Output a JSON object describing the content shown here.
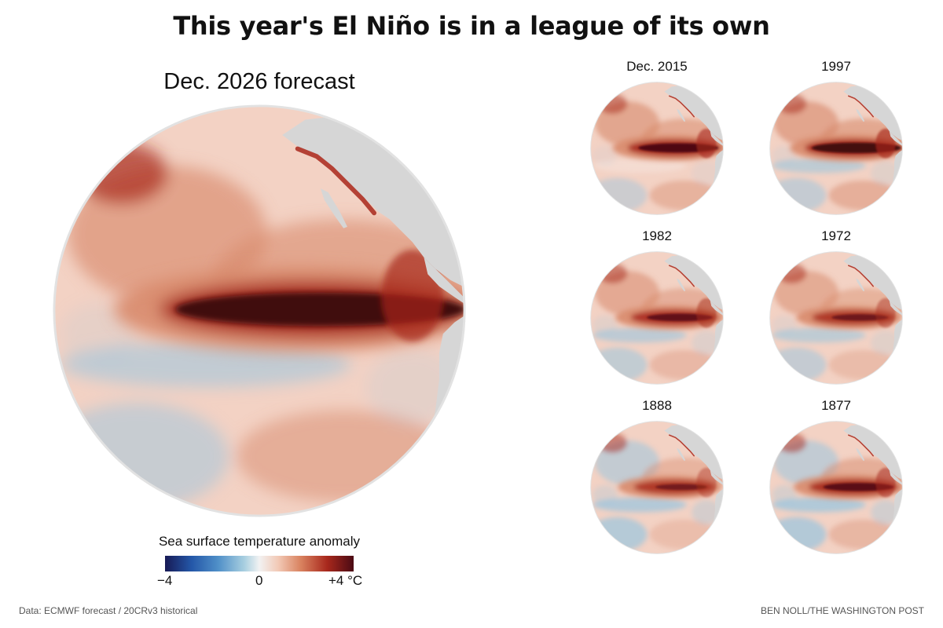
{
  "title": "This year's El Niño is in a league of its own",
  "main_map": {
    "label": "Dec. 2026 forecast"
  },
  "small_maps": [
    {
      "label": "Dec. 2015",
      "intensity": 0.85,
      "cool": 0.25
    },
    {
      "label": "1997",
      "intensity": 0.95,
      "cool": 0.4
    },
    {
      "label": "1982",
      "intensity": 0.7,
      "cool": 0.45
    },
    {
      "label": "1972",
      "intensity": 0.6,
      "cool": 0.4
    },
    {
      "label": "1888",
      "intensity": 0.55,
      "cool": 0.7
    },
    {
      "label": "1877",
      "intensity": 0.75,
      "cool": 0.75
    }
  ],
  "legend": {
    "title": "Sea surface temperature anomaly",
    "min_label": "−4",
    "mid_label": "0",
    "max_label": "+4 °C"
  },
  "colors": {
    "land": "#d6d6d6",
    "ocean_warm_light": "#f3d2c4",
    "ocean_warm": "#d88a6c",
    "ocean_hot": "#a8281c",
    "ocean_extreme": "#3f0710",
    "ocean_cool": "#9dc6de",
    "ocean_cold": "#2a5ea8"
  },
  "footer": {
    "source": "Data: ECMWF forecast / 20CRv3 historical",
    "credit": "BEN NOLL/THE WASHINGTON POST"
  }
}
